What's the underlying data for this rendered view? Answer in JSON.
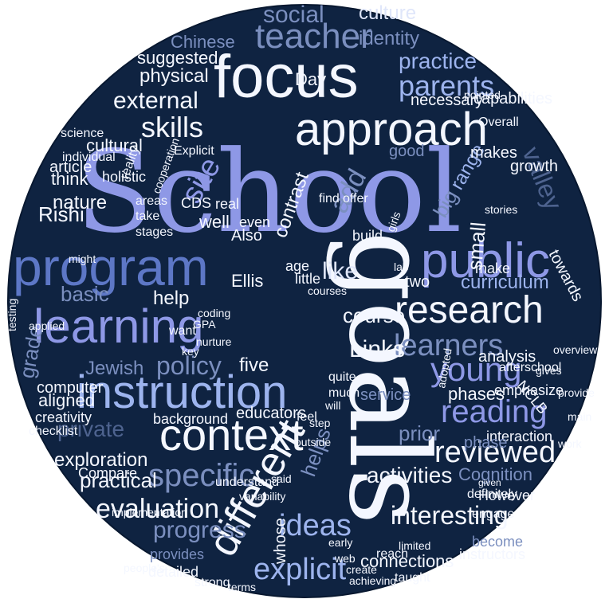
{
  "cloud": {
    "background": "#0f2341",
    "circle_edge": "#081830",
    "palette": {
      "white": "#f4f7ff",
      "pale": "#dfe6fa",
      "lav": "#8e98e6",
      "peri": "#9db4ee",
      "blue": "#5d77c6",
      "slate": "#7b8fbf",
      "mute": "#4e638f",
      "dim": "#3d5178"
    },
    "words": [
      "School",
      "goals",
      "focus",
      "program",
      "learning",
      "public",
      "instruction",
      "research",
      "approach",
      "context",
      "different",
      "teacher",
      "young",
      "reading",
      "learners",
      "reviewed",
      "skills",
      "parents",
      "specific",
      "ideas",
      "explicit",
      "evaluation",
      "practice",
      "external",
      "physical",
      "social",
      "culture",
      "identity",
      "suggested",
      "progress",
      "practical",
      "exploration",
      "private",
      "policy",
      "interesting",
      "activities",
      "curriculum",
      "Links",
      "course",
      "valley",
      "site",
      "range",
      "big",
      "add",
      "like",
      "helps",
      "help",
      "five",
      "Ellis",
      "Jewish",
      "Rishi",
      "think",
      "nature",
      "article",
      "cultural",
      "basic",
      "grade",
      "computer",
      "aligned",
      "creativity",
      "checklist",
      "Compare",
      "Cognition",
      "phases",
      "service",
      "However",
      "interaction",
      "phase",
      "provides",
      "detailed",
      "connections",
      "whose",
      "prior",
      "educators",
      "background",
      "understand",
      "variability",
      "implementation",
      "people's",
      "strong",
      "Chinese",
      "five",
      "Day",
      "towards",
      "growth",
      "makes",
      "necessary",
      "capabilities",
      "two",
      "make",
      "analysis",
      "emphasize",
      "small",
      "afterschool",
      "NCLB",
      "engage",
      "definitely",
      "become",
      "instructors",
      "taught",
      "reach",
      "limited",
      "create",
      "achieving",
      "web",
      "early",
      "Also",
      "well",
      "real",
      "even",
      "CDS",
      "take",
      "areas",
      "stages",
      "holistic",
      "individual",
      "science",
      "want",
      "applied",
      "might",
      "coding",
      "GPA",
      "good",
      "find",
      "offer",
      "girls",
      "stories",
      "Overall",
      "pointed",
      "Explicit",
      "cooperation",
      "reality",
      "contrast",
      "age",
      "build",
      "little",
      "courses",
      "lab",
      "quite",
      "much",
      "feel",
      "will",
      "outside",
      "adopted",
      "step",
      "given",
      "work",
      "main",
      "provide",
      "overview",
      "gives",
      "said",
      "nurture",
      "key",
      "testing",
      "terms"
    ]
  }
}
